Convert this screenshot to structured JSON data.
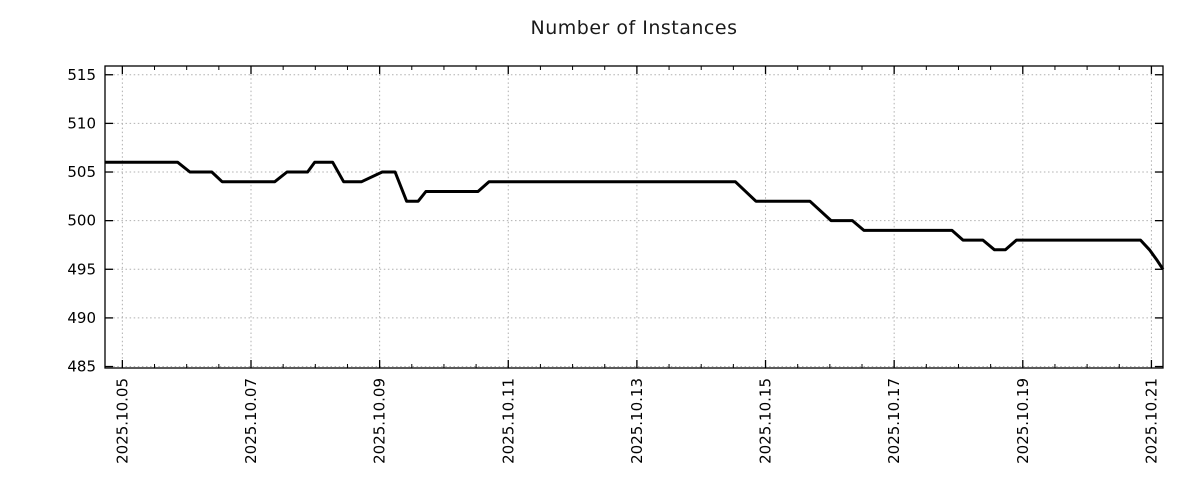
{
  "page": {
    "background": "#ffffff"
  },
  "chart_data": {
    "type": "line",
    "title": "Number of Instances",
    "x_axis": {
      "unit": "date, day of October 2025",
      "lim": [
        4.73,
        21.18
      ],
      "ticks": [
        {
          "v": 5,
          "label": "2025.10.05"
        },
        {
          "v": 7,
          "label": "2025.10.07"
        },
        {
          "v": 9,
          "label": "2025.10.09"
        },
        {
          "v": 11,
          "label": "2025.10.11"
        },
        {
          "v": 13,
          "label": "2025.10.13"
        },
        {
          "v": 15,
          "label": "2025.10.15"
        },
        {
          "v": 17,
          "label": "2025.10.17"
        },
        {
          "v": 19,
          "label": "2025.10.19"
        },
        {
          "v": 21,
          "label": "2025.10.21"
        }
      ],
      "minor_tick_step": 0.5
    },
    "y_axis": {
      "unit": "instances",
      "lim": [
        484.85,
        515.9
      ],
      "ticks": [
        {
          "v": 485,
          "label": "485"
        },
        {
          "v": 490,
          "label": "490"
        },
        {
          "v": 495,
          "label": "495"
        },
        {
          "v": 500,
          "label": "500"
        },
        {
          "v": 505,
          "label": "505"
        },
        {
          "v": 510,
          "label": "510"
        },
        {
          "v": 515,
          "label": "515"
        }
      ]
    },
    "grid": {
      "style": "dotted",
      "color": "#b0b0b0",
      "on": true
    },
    "border_color": "#000000",
    "legend": "none",
    "series": [
      {
        "name": "number-of-instances",
        "color": "#000000",
        "line_width": 3,
        "points": [
          [
            4.73,
            506
          ],
          [
            5.86,
            506
          ],
          [
            6.05,
            505
          ],
          [
            6.39,
            505
          ],
          [
            6.55,
            504
          ],
          [
            7.37,
            504
          ],
          [
            7.56,
            505
          ],
          [
            7.88,
            505
          ],
          [
            7.99,
            506
          ],
          [
            8.27,
            506
          ],
          [
            8.44,
            504
          ],
          [
            8.72,
            504
          ],
          [
            9.04,
            505
          ],
          [
            9.24,
            505
          ],
          [
            9.42,
            502
          ],
          [
            9.6,
            502
          ],
          [
            9.72,
            503
          ],
          [
            10.53,
            503
          ],
          [
            10.7,
            504
          ],
          [
            14.53,
            504
          ],
          [
            14.85,
            502
          ],
          [
            15.69,
            502
          ],
          [
            16.02,
            500
          ],
          [
            16.35,
            500
          ],
          [
            16.53,
            499
          ],
          [
            17.9,
            499
          ],
          [
            18.07,
            498
          ],
          [
            18.38,
            498
          ],
          [
            18.56,
            497
          ],
          [
            18.73,
            497
          ],
          [
            18.9,
            498
          ],
          [
            20.83,
            498
          ],
          [
            20.97,
            497
          ],
          [
            21.08,
            496
          ],
          [
            21.18,
            495
          ]
        ]
      }
    ]
  }
}
